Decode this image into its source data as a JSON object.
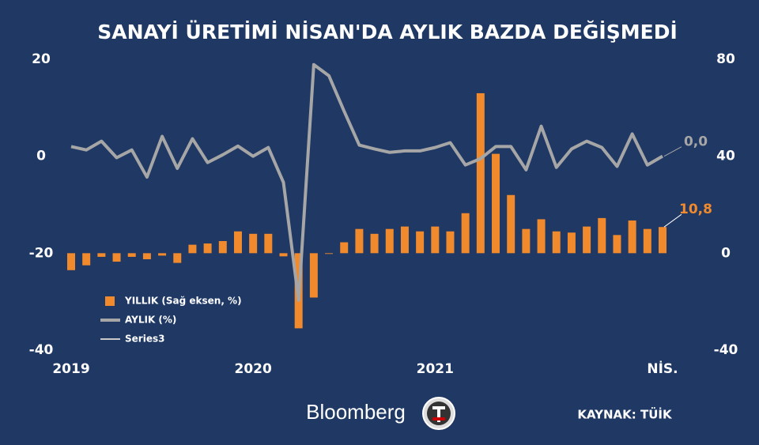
{
  "chart_data": {
    "type": "bar_line",
    "title": "SANAYİ ÜRETİMİ NİSAN'DA AYLIK BAZDA DEĞİŞMEDİ",
    "categories": [
      "2019",
      null,
      null,
      null,
      null,
      null,
      null,
      null,
      null,
      null,
      null,
      null,
      "2020",
      null,
      null,
      null,
      null,
      null,
      null,
      null,
      null,
      null,
      null,
      null,
      "2021",
      null,
      null,
      null,
      null,
      null,
      null,
      null,
      null,
      null,
      null,
      null,
      null,
      null,
      null,
      "NİS."
    ],
    "ylim": [
      -40,
      20
    ],
    "yticks": [
      20,
      0,
      -20,
      -40
    ],
    "y2lim": [
      -40,
      80
    ],
    "y2ticks": [
      80,
      40,
      0,
      -40
    ],
    "series": [
      {
        "name": "YILLIK (Sağ eksen, %)",
        "color": "#f08a2c",
        "axis": "y2",
        "kind": "bar",
        "values": [
          -7,
          -5,
          -1.5,
          -3.5,
          -1.5,
          -2.5,
          -1,
          -4,
          3.5,
          4,
          5,
          9,
          8,
          8,
          -1.3,
          -31,
          -18.3,
          -0.3,
          4.5,
          10,
          8,
          10,
          11,
          9,
          11,
          9,
          16.5,
          66,
          41,
          24,
          10,
          14,
          9,
          8.5,
          11,
          14.5,
          7.5,
          13.5,
          10,
          10.8
        ],
        "value_labels": [
          null,
          null,
          null,
          null,
          null,
          null,
          null,
          null,
          null,
          null,
          null,
          null,
          null,
          null,
          null,
          null,
          null,
          null,
          null,
          null,
          null,
          null,
          null,
          null,
          null,
          null,
          null,
          null,
          null,
          null,
          null,
          null,
          null,
          null,
          null,
          null,
          null,
          null,
          null,
          "10,8"
        ]
      },
      {
        "name": "AYLIK (%)",
        "color": "#a6a6a6",
        "kind": "line",
        "values": [
          2,
          1.3,
          3.1,
          -0.3,
          1.3,
          -4.3,
          4.1,
          -2.5,
          3.6,
          -1.3,
          0.3,
          2.1,
          0,
          1.8,
          -5.4,
          -29.7,
          18.9,
          16.6,
          9.3,
          2.3,
          1.5,
          0.8,
          1.1,
          1.1,
          1.8,
          2.8,
          -1.8,
          -0.5,
          2,
          2,
          -2.8,
          6.2,
          -2.3,
          1.5,
          3.1,
          1.8,
          -2.1,
          4.6,
          -1.8,
          0.0
        ],
        "value_labels": [
          null,
          null,
          null,
          null,
          null,
          null,
          null,
          null,
          null,
          null,
          null,
          null,
          null,
          null,
          null,
          null,
          null,
          null,
          null,
          null,
          null,
          null,
          null,
          null,
          null,
          null,
          null,
          null,
          null,
          null,
          null,
          null,
          null,
          null,
          null,
          null,
          null,
          null,
          null,
          "0,0"
        ]
      },
      {
        "name": "Series3",
        "color": "#c8c8c8",
        "kind": "line",
        "values": [
          null,
          null,
          null,
          null,
          null,
          null,
          null,
          null,
          null,
          null,
          null,
          null,
          null,
          null,
          null,
          null,
          null,
          null,
          null,
          null,
          null,
          null,
          null,
          null,
          null,
          null,
          null,
          null,
          null,
          null,
          null,
          null,
          null,
          null,
          null,
          null,
          null,
          null,
          null,
          null
        ]
      }
    ],
    "brand": "Bloomberg",
    "source": "KAYNAK: TÜİK"
  }
}
